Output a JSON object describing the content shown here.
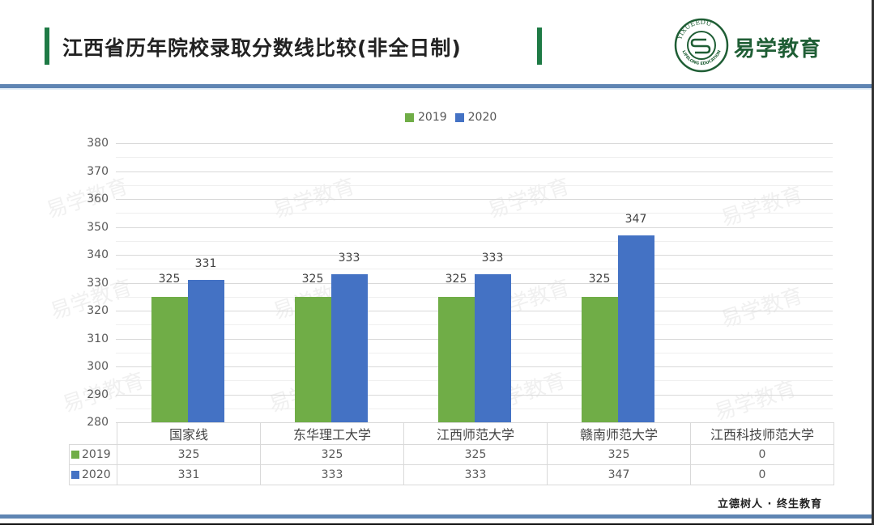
{
  "header": {
    "title": "江西省历年院校录取分数线比较(非全日制)",
    "brand": "易学教育",
    "logo_top_text": "YIXUEEDU",
    "logo_bottom_text": "LIFELONG EDUCATION"
  },
  "footer": {
    "slogan": "立德树人 · 终生教育"
  },
  "watermark": "易学教育",
  "colors": {
    "accent_green": "#1e7a45",
    "rule_blue": "#5f85b3",
    "series_2019": "#70ad47",
    "series_2020": "#4472c4"
  },
  "chart_data": {
    "type": "bar",
    "title": "江西省历年院校录取分数线比较(非全日制)",
    "categories": [
      "国家线",
      "东华理工大学",
      "江西师范大学",
      "赣南师范大学",
      "江西科技师范大学"
    ],
    "series": [
      {
        "name": "2019",
        "values": [
          325,
          325,
          325,
          325,
          0
        ],
        "color": "#70ad47"
      },
      {
        "name": "2020",
        "values": [
          331,
          333,
          333,
          347,
          0
        ],
        "color": "#4472c4"
      }
    ],
    "xlabel": "",
    "ylabel": "",
    "ylim": [
      280,
      380
    ],
    "yticks": [
      380,
      370,
      360,
      350,
      340,
      330,
      320,
      310,
      300,
      290,
      280
    ],
    "grid": true,
    "legend_position": "top",
    "data_table": true
  },
  "legend": {
    "items": [
      {
        "label": "2019"
      },
      {
        "label": "2020"
      }
    ]
  },
  "table": {
    "row_2019_label": "2019",
    "row_2020_label": "2020"
  }
}
